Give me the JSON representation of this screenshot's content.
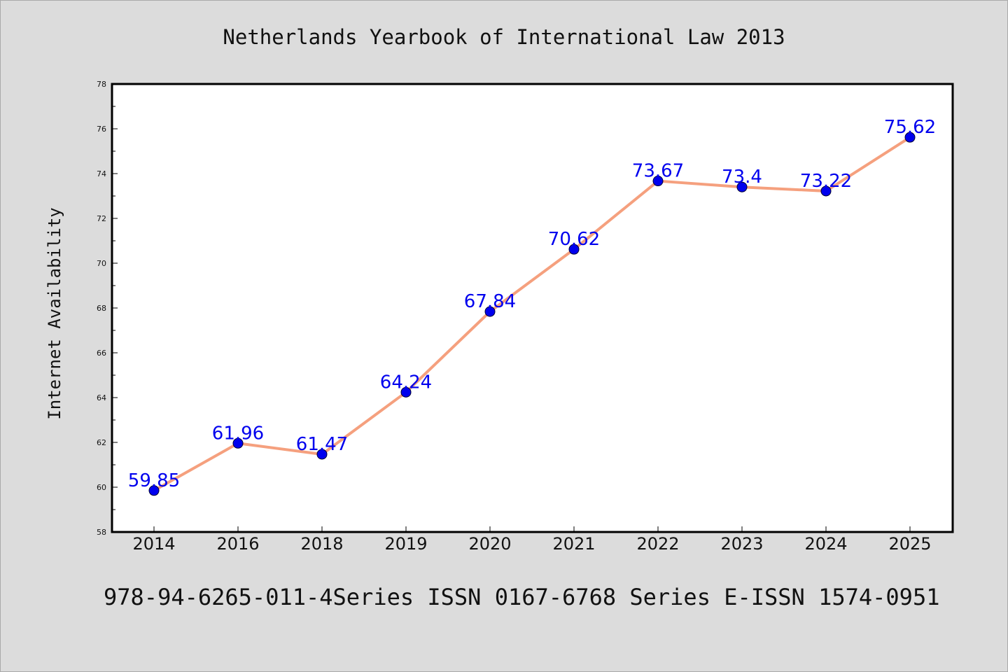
{
  "chart_data": {
    "type": "line",
    "title": "Netherlands Yearbook of International Law 2013",
    "xlabel": "",
    "ylabel": "Internet Availability",
    "categories": [
      "2014",
      "2016",
      "2018",
      "2019",
      "2020",
      "2021",
      "2022",
      "2023",
      "2024",
      "2025"
    ],
    "series": [
      {
        "values": [
          59.85,
          61.96,
          61.47,
          64.24,
          67.84,
          70.62,
          73.67,
          73.4,
          73.22,
          75.62
        ],
        "labels": [
          "59.85",
          "61.96",
          "61.47",
          "64.24",
          "67.84",
          "70.62",
          "73.67",
          "73.4",
          "73.22",
          "75.62"
        ]
      }
    ],
    "ylim": [
      58,
      78
    ],
    "yticks": [
      "58",
      "60",
      "62",
      "64",
      "66",
      "68",
      "70",
      "72",
      "74",
      "76",
      "78"
    ],
    "grid": false,
    "legend": "none",
    "footer": "978-94-6265-011-4Series ISSN 0167-6768 Series E-ISSN 1574-0951",
    "colors": {
      "line": "#f5a07e",
      "marker": "#0000ee",
      "label": "#0000ee",
      "background": "#dcdcdc",
      "plot_background": "#ffffff"
    }
  }
}
